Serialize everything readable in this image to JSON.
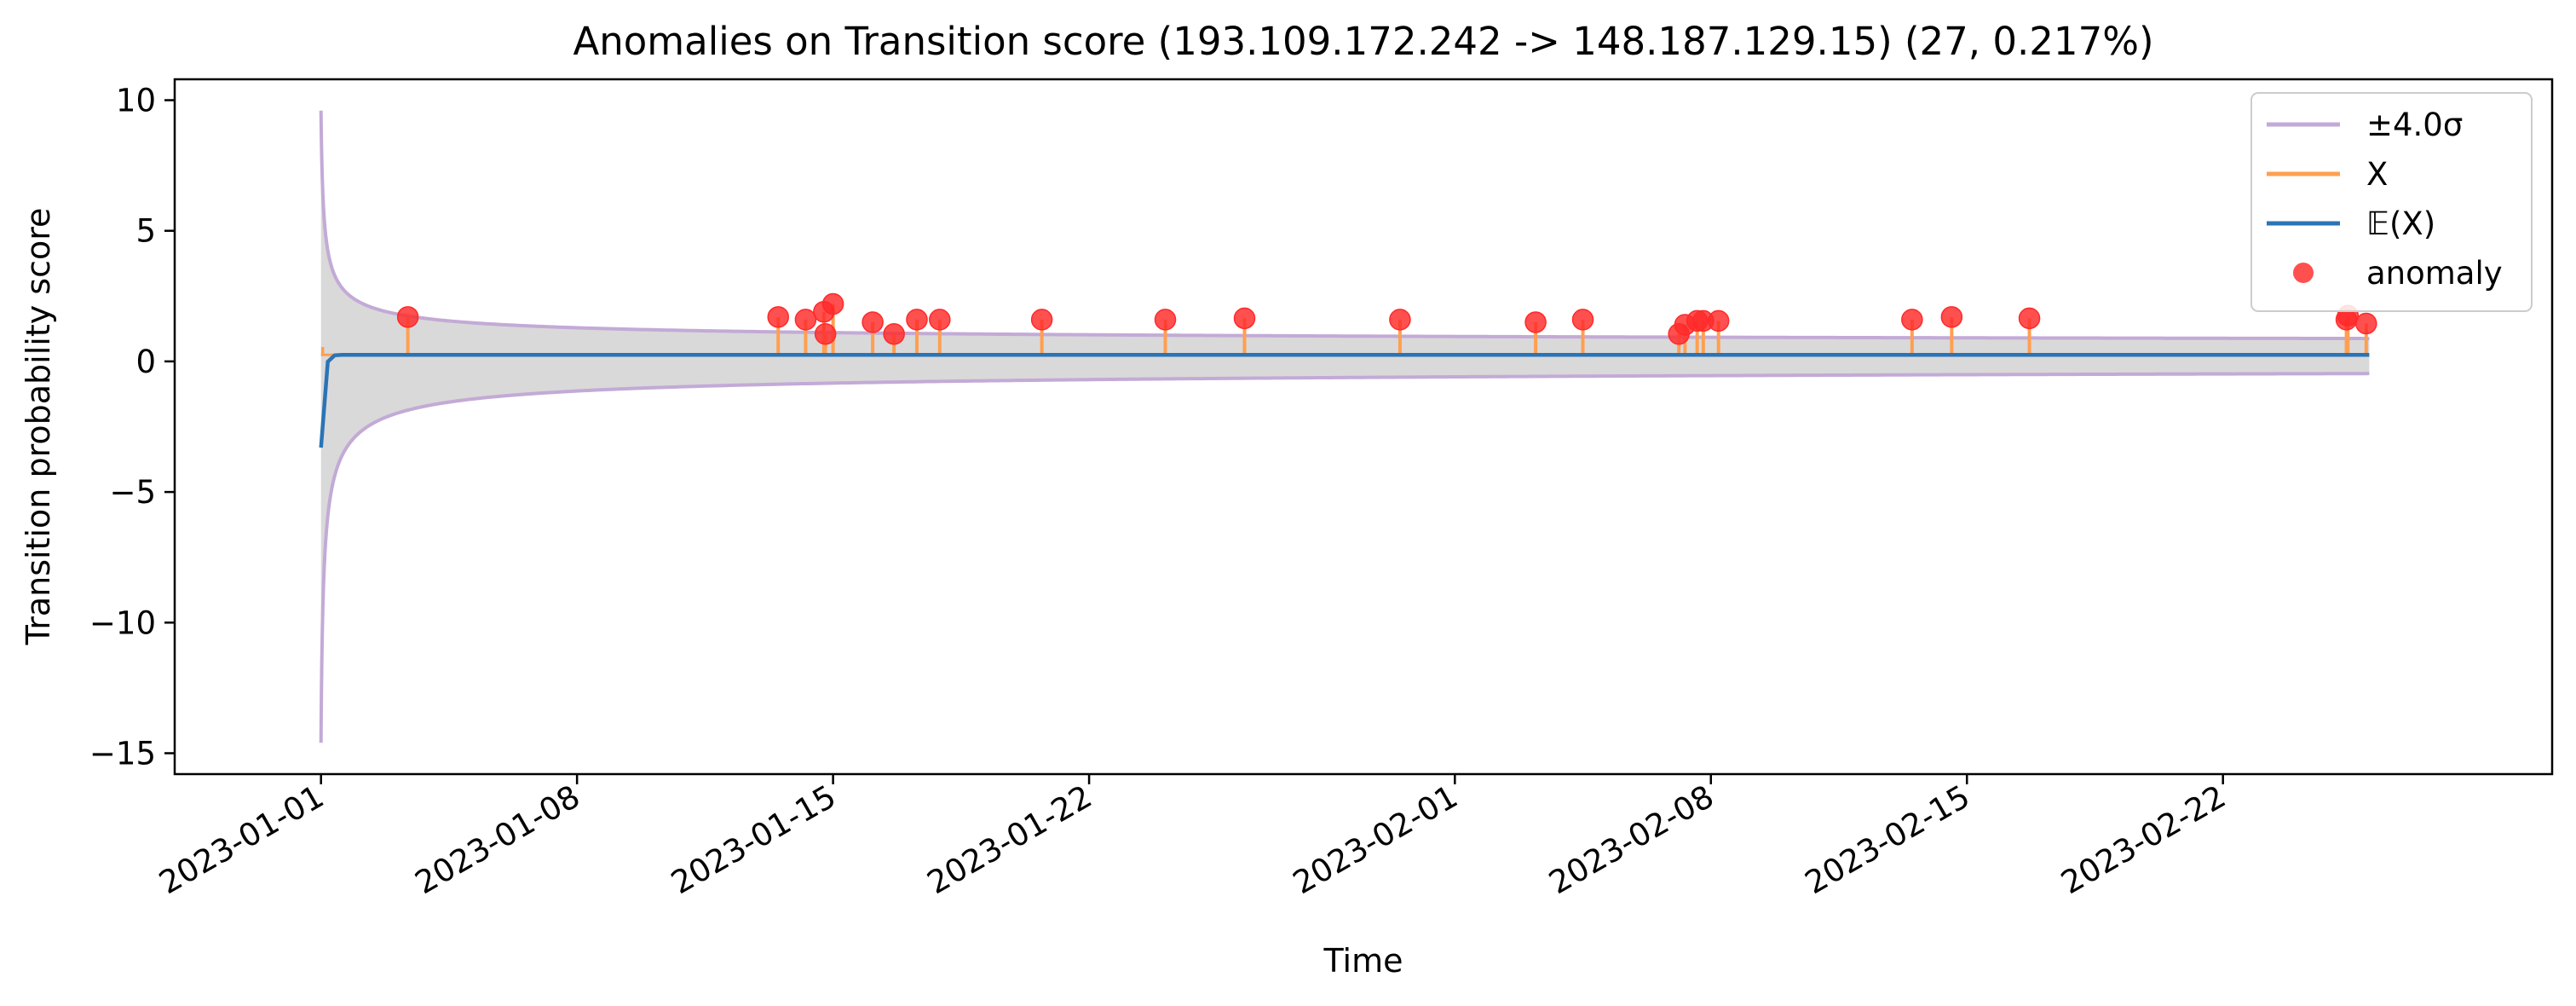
{
  "chart_data": {
    "type": "line",
    "title": "Anomalies on Transition score (193.109.172.242 -> 148.187.129.15) (27, 0.217%)",
    "xlabel": "Time",
    "ylabel": "Transition probability score",
    "x_range": [
      "2022-12-28",
      "2023-03-03"
    ],
    "ylim": [
      -15.8,
      10.8
    ],
    "x_ticks": [
      "2023-01-01",
      "2023-01-08",
      "2023-01-15",
      "2023-01-22",
      "2023-02-01",
      "2023-02-08",
      "2023-02-15",
      "2023-02-22"
    ],
    "y_ticks": [
      10,
      5,
      0,
      -5,
      -10,
      -15
    ],
    "y_tick_labels": [
      "10",
      "5",
      "0",
      "−5",
      "−10",
      "−15"
    ],
    "grid": false,
    "legend_position": "upper right",
    "series": [
      {
        "name": "±4.0σ",
        "color": "#c3aad6"
      },
      {
        "name": "X",
        "color": "#ff9f50"
      },
      {
        "name": "𝔼(X)",
        "color": "#2a74b6"
      },
      {
        "name": "anomaly",
        "color": "#ff2a2a"
      }
    ],
    "band": {
      "x_start": "2023-01-01",
      "x_end": "2023-02-26",
      "upper_start": 9.6,
      "lower_start": -14.6,
      "upper_end": 0.65,
      "lower_end": -0.1,
      "fill": "#d9d9d9",
      "line_color": "#c3aad6"
    },
    "expected": {
      "start_value": -3.3,
      "steady_value": 0.25,
      "color": "#2a74b6"
    },
    "x_observed": {
      "baseline": 0.25,
      "color": "#ff9f50"
    },
    "anomalies": [
      {
        "x": "2023-01-03T09:00",
        "y": 1.7
      },
      {
        "x": "2023-01-13T12:00",
        "y": 1.7
      },
      {
        "x": "2023-01-14T06:00",
        "y": 1.6
      },
      {
        "x": "2023-01-14T18:00",
        "y": 1.9
      },
      {
        "x": "2023-01-14T19:00",
        "y": 1.05
      },
      {
        "x": "2023-01-15T00:00",
        "y": 2.2
      },
      {
        "x": "2023-01-16T02:00",
        "y": 1.5
      },
      {
        "x": "2023-01-16T16:00",
        "y": 1.05
      },
      {
        "x": "2023-01-17T07:00",
        "y": 1.6
      },
      {
        "x": "2023-01-17T22:00",
        "y": 1.6
      },
      {
        "x": "2023-01-20T17:00",
        "y": 1.6
      },
      {
        "x": "2023-01-24T02:00",
        "y": 1.6
      },
      {
        "x": "2023-01-26T06:00",
        "y": 1.65
      },
      {
        "x": "2023-01-30T12:00",
        "y": 1.6
      },
      {
        "x": "2023-02-03T05:00",
        "y": 1.5
      },
      {
        "x": "2023-02-04T12:00",
        "y": 1.6
      },
      {
        "x": "2023-02-07T03:00",
        "y": 1.05
      },
      {
        "x": "2023-02-07T07:00",
        "y": 1.4
      },
      {
        "x": "2023-02-07T15:00",
        "y": 1.55
      },
      {
        "x": "2023-02-07T19:00",
        "y": 1.55
      },
      {
        "x": "2023-02-08T05:00",
        "y": 1.55
      },
      {
        "x": "2023-02-13T12:00",
        "y": 1.6
      },
      {
        "x": "2023-02-14T14:00",
        "y": 1.7
      },
      {
        "x": "2023-02-16T17:00",
        "y": 1.65
      },
      {
        "x": "2023-02-25T09:00",
        "y": 1.6
      },
      {
        "x": "2023-02-25T10:00",
        "y": 1.75
      },
      {
        "x": "2023-02-25T22:00",
        "y": 1.45
      }
    ]
  }
}
